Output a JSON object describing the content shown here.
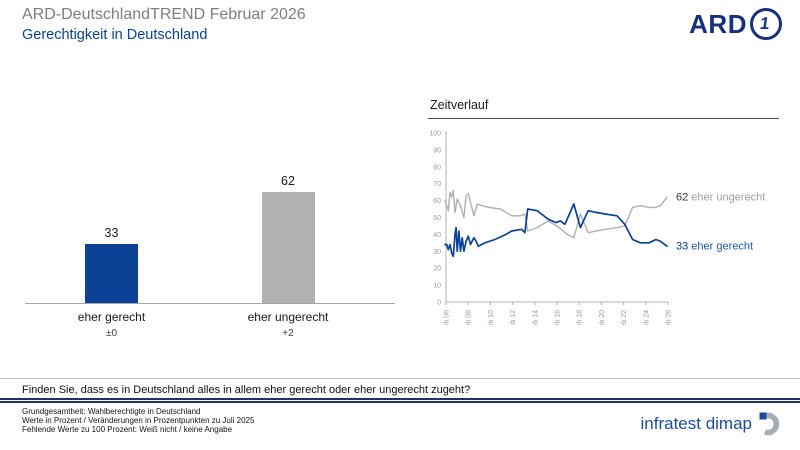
{
  "header": {
    "title": "ARD-DeutschlandTREND Februar 2026",
    "subtitle": "Gerechtigkeit in Deutschland",
    "ard_logo_text": "ARD",
    "ard_logo_one": "1"
  },
  "timeline": {
    "title": "Zeitverlauf"
  },
  "question": "Finden Sie, dass es in Deutschland alles in allem eher gerecht oder eher ungerecht zugeht?",
  "footnotes": [
    "Grundgesamtheit: Wahlberechtigte in Deutschland",
    "Werte in Prozent / Veränderungen in Prozentpunkten zu Juli 2025",
    "Fehlende Werte zu 100 Prozent: Weiß nicht / keine Angabe"
  ],
  "branding": {
    "agency": "infratest dimap"
  },
  "colors": {
    "blue": "#0B4295",
    "bar_gray": "#B2B2B4",
    "line_gray": "#AFAFAF",
    "axis_gray": "#B0B0B0",
    "tick_text": "#9C9C9C",
    "navy": "#16307A"
  },
  "chart_data": [
    {
      "type": "bar",
      "title": "Gerechtigkeit in Deutschland",
      "categories": [
        "eher gerecht",
        "eher ungerecht"
      ],
      "values": [
        33,
        62
      ],
      "changes": [
        "±0",
        "+2"
      ],
      "bar_colors": [
        "#0B4295",
        "#B2B2B4"
      ],
      "ylim": [
        0,
        75
      ],
      "value_labels_shown": true
    },
    {
      "type": "line",
      "title": "Zeitverlauf",
      "xlim": [
        2006,
        2026
      ],
      "ylim": [
        0,
        100
      ],
      "y_ticks": [
        0,
        10,
        20,
        30,
        40,
        50,
        60,
        70,
        80,
        90,
        100
      ],
      "x_tick_labels": [
        "Feb 06",
        "Feb 08",
        "Feb 10",
        "Feb 12",
        "Feb 14",
        "Feb 16",
        "Feb 18",
        "Feb 20",
        "Feb 22",
        "Feb 24",
        "Feb 26"
      ],
      "grid": false,
      "legend_position": "right-of-line-ends",
      "series": [
        {
          "name": "eher ungerecht",
          "end_value": 62,
          "color": "#AFAFAF",
          "num_color": "#3A3A3A",
          "label_color": "#9F9F9F",
          "points": [
            [
              2006.0,
              60
            ],
            [
              2006.15,
              57
            ],
            [
              2006.3,
              54
            ],
            [
              2006.45,
              65
            ],
            [
              2006.6,
              62
            ],
            [
              2006.75,
              66
            ],
            [
              2006.9,
              53
            ],
            [
              2007.1,
              61
            ],
            [
              2007.4,
              57
            ],
            [
              2007.7,
              50
            ],
            [
              2007.9,
              63
            ],
            [
              2008.1,
              64
            ],
            [
              2008.3,
              59
            ],
            [
              2008.6,
              51
            ],
            [
              2008.9,
              58
            ],
            [
              2009.3,
              57
            ],
            [
              2010.0,
              56
            ],
            [
              2011.0,
              55
            ],
            [
              2012.0,
              51
            ],
            [
              2012.8,
              51
            ],
            [
              2013.2,
              52
            ],
            [
              2013.45,
              42
            ],
            [
              2014.3,
              44
            ],
            [
              2015.3,
              48
            ],
            [
              2016.3,
              44
            ],
            [
              2017.0,
              40
            ],
            [
              2017.6,
              38
            ],
            [
              2018.2,
              52
            ],
            [
              2018.9,
              41
            ],
            [
              2019.6,
              42
            ],
            [
              2020.5,
              43
            ],
            [
              2021.5,
              44
            ],
            [
              2022.2,
              45
            ],
            [
              2022.9,
              56
            ],
            [
              2023.6,
              57
            ],
            [
              2024.4,
              56
            ],
            [
              2025.0,
              56
            ],
            [
              2025.4,
              57
            ],
            [
              2026.0,
              62
            ]
          ]
        },
        {
          "name": "eher gerecht",
          "end_value": 33,
          "color": "#0B4295",
          "num_color": "#0A3A86",
          "label_color": "#2156B0",
          "points": [
            [
              2006.0,
              34
            ],
            [
              2006.15,
              34
            ],
            [
              2006.3,
              31
            ],
            [
              2006.45,
              34
            ],
            [
              2006.6,
              29
            ],
            [
              2006.75,
              27
            ],
            [
              2006.9,
              40
            ],
            [
              2007.0,
              44
            ],
            [
              2007.1,
              30
            ],
            [
              2007.25,
              42
            ],
            [
              2007.4,
              30
            ],
            [
              2007.55,
              38
            ],
            [
              2007.7,
              30
            ],
            [
              2007.9,
              36
            ],
            [
              2008.1,
              39
            ],
            [
              2008.3,
              34
            ],
            [
              2008.6,
              38
            ],
            [
              2008.8,
              36
            ],
            [
              2009.0,
              33
            ],
            [
              2009.6,
              35
            ],
            [
              2010.5,
              37
            ],
            [
              2011.5,
              40
            ],
            [
              2012.0,
              42
            ],
            [
              2012.9,
              43
            ],
            [
              2013.2,
              41
            ],
            [
              2013.45,
              55
            ],
            [
              2014.3,
              54
            ],
            [
              2015.3,
              49
            ],
            [
              2016.0,
              47
            ],
            [
              2016.4,
              48
            ],
            [
              2016.8,
              46
            ],
            [
              2017.6,
              58
            ],
            [
              2018.2,
              44
            ],
            [
              2018.9,
              54
            ],
            [
              2019.6,
              53
            ],
            [
              2020.5,
              52
            ],
            [
              2021.5,
              51
            ],
            [
              2022.2,
              46
            ],
            [
              2022.9,
              37
            ],
            [
              2023.6,
              35
            ],
            [
              2024.4,
              35
            ],
            [
              2025.0,
              37
            ],
            [
              2025.4,
              36
            ],
            [
              2026.0,
              33
            ]
          ]
        }
      ]
    }
  ]
}
